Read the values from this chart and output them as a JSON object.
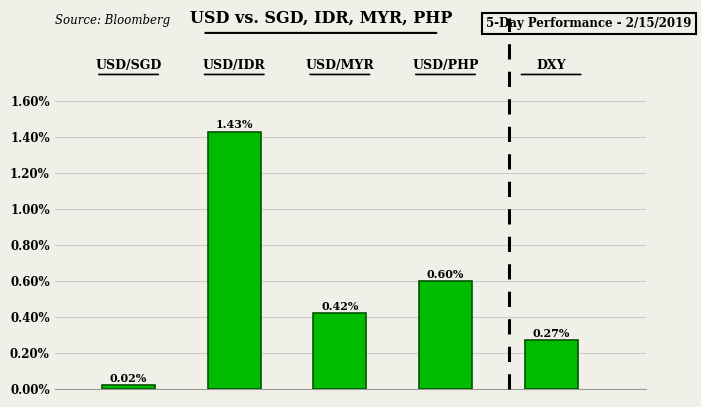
{
  "categories": [
    "USD/SGD",
    "USD/IDR",
    "USD/MYR",
    "USD/PHP",
    "DXY"
  ],
  "values": [
    0.0002,
    0.0143,
    0.0042,
    0.006,
    0.0027
  ],
  "labels": [
    "0.02%",
    "1.43%",
    "0.42%",
    "0.60%",
    "0.27%"
  ],
  "bar_color": "#00BB00",
  "bar_edge_color": "#005500",
  "title_center": "USD vs. SGD, IDR, MYR, PHP",
  "title_right": "5-Day Performance - 2/15/2019",
  "source_text": "Source: Bloomberg",
  "ylim": [
    0,
    0.0165
  ],
  "yticks": [
    0.0,
    0.002,
    0.004,
    0.006,
    0.008,
    0.01,
    0.012,
    0.014,
    0.016
  ],
  "ytick_labels": [
    "0.00%",
    "0.20%",
    "0.40%",
    "0.60%",
    "0.80%",
    "1.00%",
    "1.20%",
    "1.40%",
    "1.60%"
  ],
  "background_color": "#f0efe8",
  "bar_width": 0.5,
  "x_positions": [
    1,
    2,
    3,
    4,
    5
  ],
  "xlim": [
    0.3,
    5.9
  ],
  "dashed_line_x": 4.6
}
